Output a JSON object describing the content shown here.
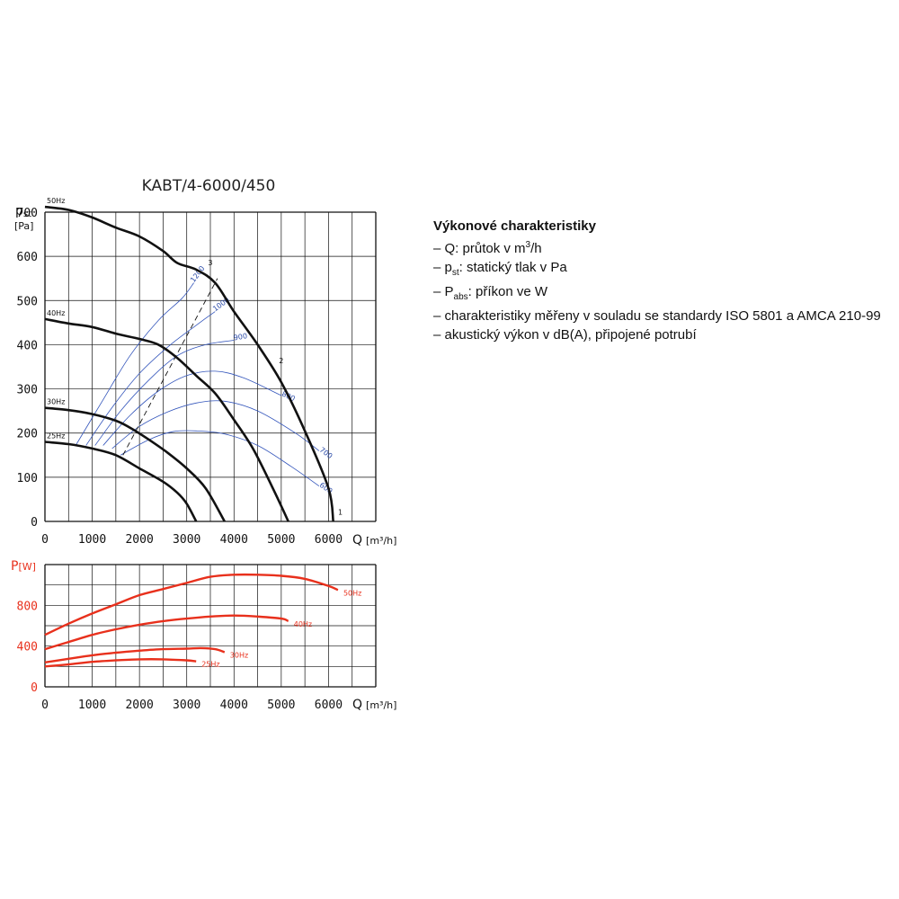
{
  "legend": {
    "title": "Výkonové charakteristiky",
    "items": [
      {
        "dash": "–",
        "pre": "Q: průtok v m",
        "sup": "3",
        "post": "/h"
      },
      {
        "dash": "–",
        "pre": "p",
        "sub": "st",
        "post": ": statický tlak v Pa"
      },
      {
        "dash": "–",
        "pre": "P",
        "sub": "abs",
        "post": ": příkon ve W"
      },
      {
        "dash": "–",
        "pre": "charakteristiky měřeny v souladu se standardy ISO 5801 a AMCA 210-99"
      },
      {
        "dash": "–",
        "pre": "akustický výkon v dB(A), připojené potrubí"
      }
    ]
  },
  "chart_data": [
    {
      "type": "line",
      "title": "KABT/4-6000/450",
      "ylabel": "p",
      "ylabel_sub": "st",
      "yunit": "[Pa]",
      "xlabel": "Q",
      "xunit": "[m³/h]",
      "xlim": [
        0,
        7000
      ],
      "ylim": [
        0,
        700
      ],
      "xticks": [
        "0",
        "1000",
        "2000",
        "3000",
        "4000",
        "5000",
        "6000"
      ],
      "yticks": [
        "0",
        "100",
        "200",
        "300",
        "400",
        "500",
        "600",
        "700"
      ],
      "grid": true,
      "series": [
        {
          "name": "50Hz",
          "points": [
            [
              0,
              712
            ],
            [
              500,
              705
            ],
            [
              1000,
              688
            ],
            [
              1500,
              665
            ],
            [
              2000,
              645
            ],
            [
              2500,
              612
            ],
            [
              2800,
              585
            ],
            [
              3200,
              570
            ],
            [
              3600,
              540
            ],
            [
              4000,
              475
            ],
            [
              4500,
              400
            ],
            [
              5000,
              315
            ],
            [
              5500,
              205
            ],
            [
              6000,
              75
            ],
            [
              6100,
              0
            ]
          ]
        },
        {
          "name": "40Hz",
          "points": [
            [
              0,
              458
            ],
            [
              500,
              448
            ],
            [
              1000,
              440
            ],
            [
              1500,
              425
            ],
            [
              2000,
              413
            ],
            [
              2400,
              400
            ],
            [
              2800,
              370
            ],
            [
              3200,
              330
            ],
            [
              3600,
              290
            ],
            [
              4000,
              230
            ],
            [
              4400,
              165
            ],
            [
              4800,
              80
            ],
            [
              5150,
              0
            ]
          ]
        },
        {
          "name": "30Hz",
          "points": [
            [
              0,
              257
            ],
            [
              500,
              252
            ],
            [
              1000,
              243
            ],
            [
              1500,
              228
            ],
            [
              1800,
              212
            ],
            [
              2200,
              185
            ],
            [
              2600,
              155
            ],
            [
              3000,
              120
            ],
            [
              3400,
              75
            ],
            [
              3800,
              0
            ]
          ]
        },
        {
          "name": "25Hz",
          "points": [
            [
              0,
              180
            ],
            [
              500,
              175
            ],
            [
              1000,
              165
            ],
            [
              1500,
              150
            ],
            [
              2000,
              120
            ],
            [
              2500,
              90
            ],
            [
              2800,
              65
            ],
            [
              3000,
              40
            ],
            [
              3200,
              0
            ]
          ]
        }
      ],
      "efficiency_curves": [
        {
          "label": "1200",
          "points": [
            [
              650,
              172
            ],
            [
              1200,
              270
            ],
            [
              1800,
              375
            ],
            [
              2400,
              455
            ],
            [
              2900,
              505
            ],
            [
              3150,
              540
            ]
          ]
        },
        {
          "label": "1000",
          "points": [
            [
              870,
              172
            ],
            [
              1400,
              255
            ],
            [
              2000,
              335
            ],
            [
              2600,
              395
            ],
            [
              3150,
              440
            ],
            [
              3600,
              475
            ]
          ]
        },
        {
          "label": "900",
          "points": [
            [
              1060,
              172
            ],
            [
              1600,
              250
            ],
            [
              2200,
              320
            ],
            [
              2800,
              375
            ],
            [
              3400,
              400
            ],
            [
              4000,
              410
            ]
          ]
        },
        {
          "label": "800",
          "points": [
            [
              1230,
              172
            ],
            [
              1800,
              240
            ],
            [
              2400,
              295
            ],
            [
              3000,
              330
            ],
            [
              3600,
              340
            ],
            [
              4200,
              325
            ],
            [
              5000,
              285
            ]
          ]
        },
        {
          "label": "700",
          "points": [
            [
              1420,
              165
            ],
            [
              2000,
              215
            ],
            [
              2600,
              248
            ],
            [
              3200,
              268
            ],
            [
              3800,
              272
            ],
            [
              4500,
              250
            ],
            [
              5300,
              200
            ],
            [
              5800,
              160
            ]
          ]
        },
        {
          "label": "600",
          "points": [
            [
              1600,
              150
            ],
            [
              2200,
              185
            ],
            [
              2700,
              203
            ],
            [
              3200,
              205
            ],
            [
              3800,
              198
            ],
            [
              4500,
              172
            ],
            [
              5200,
              125
            ],
            [
              5800,
              80
            ]
          ]
        }
      ],
      "system_lines": [
        {
          "label": "1",
          "points": [
            [
              6200,
              15
            ]
          ]
        },
        {
          "label": "2",
          "points": [
            [
              4950,
              358
            ]
          ]
        },
        {
          "label": "3",
          "points": [
            [
              3450,
              580
            ]
          ]
        }
      ],
      "dashed_line": {
        "points": [
          [
            1650,
            150
          ],
          [
            3650,
            550
          ]
        ]
      }
    },
    {
      "type": "line",
      "ylabel": "P",
      "yunit": "[W]",
      "xlabel": "Q",
      "xunit": "[m³/h]",
      "xlim": [
        0,
        7000
      ],
      "ylim": [
        0,
        1200
      ],
      "xticks": [
        "0",
        "1000",
        "2000",
        "3000",
        "4000",
        "5000",
        "6000"
      ],
      "yticks": [
        "0",
        "400",
        "800"
      ],
      "grid": true,
      "color": "#e8301c",
      "series": [
        {
          "name": "50Hz",
          "points": [
            [
              0,
              510
            ],
            [
              500,
              620
            ],
            [
              1000,
              720
            ],
            [
              1500,
              810
            ],
            [
              2000,
              900
            ],
            [
              2500,
              960
            ],
            [
              3000,
              1020
            ],
            [
              3500,
              1080
            ],
            [
              4000,
              1100
            ],
            [
              4500,
              1100
            ],
            [
              5000,
              1090
            ],
            [
              5500,
              1060
            ],
            [
              6000,
              990
            ],
            [
              6200,
              950
            ]
          ]
        },
        {
          "name": "40Hz",
          "points": [
            [
              0,
              370
            ],
            [
              500,
              440
            ],
            [
              1000,
              510
            ],
            [
              1500,
              565
            ],
            [
              2000,
              610
            ],
            [
              2500,
              645
            ],
            [
              3000,
              670
            ],
            [
              3500,
              690
            ],
            [
              4000,
              700
            ],
            [
              4500,
              690
            ],
            [
              5000,
              670
            ],
            [
              5150,
              645
            ]
          ]
        },
        {
          "name": "30Hz",
          "points": [
            [
              0,
              240
            ],
            [
              500,
              275
            ],
            [
              1000,
              310
            ],
            [
              1500,
              335
            ],
            [
              2000,
              355
            ],
            [
              2500,
              370
            ],
            [
              3000,
              375
            ],
            [
              3300,
              380
            ],
            [
              3600,
              370
            ],
            [
              3800,
              340
            ]
          ]
        },
        {
          "name": "25Hz",
          "points": [
            [
              0,
              200
            ],
            [
              500,
              220
            ],
            [
              1000,
              245
            ],
            [
              1500,
              260
            ],
            [
              2000,
              270
            ],
            [
              2500,
              270
            ],
            [
              3000,
              260
            ],
            [
              3200,
              250
            ]
          ]
        }
      ]
    }
  ]
}
